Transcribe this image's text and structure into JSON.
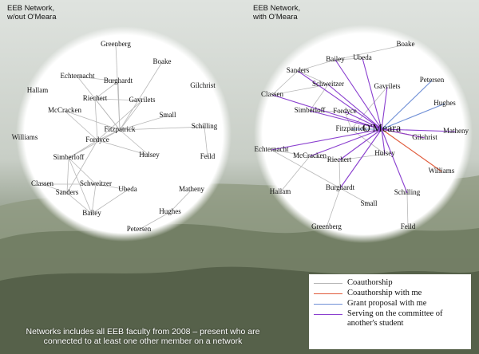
{
  "titles": {
    "left": [
      "EEB Network,",
      "w/out O'Meara"
    ],
    "right": [
      "EEB Network,",
      "with O'Meara"
    ]
  },
  "colors": {
    "coauthorship": "#b8b8b8",
    "coauthorship_with_me": "#e05a3a",
    "grant_proposal": "#6f8fd6",
    "committee": "#8a3fcf",
    "circle_fill": "#ffffff",
    "background": "#7f8b78"
  },
  "left_network": {
    "nodes": [
      {
        "id": "greenberg",
        "label": "Greenberg"
      },
      {
        "id": "boake",
        "label": "Boake"
      },
      {
        "id": "echternacht",
        "label": "Echternacht"
      },
      {
        "id": "burghardt",
        "label": "Burghardt"
      },
      {
        "id": "gilchrist",
        "label": "Gilchrist"
      },
      {
        "id": "hallam",
        "label": "Hallam"
      },
      {
        "id": "riechert",
        "label": "Riechert"
      },
      {
        "id": "gavrilets",
        "label": "Gavrilets"
      },
      {
        "id": "mccracken",
        "label": "McCracken"
      },
      {
        "id": "small",
        "label": "Small"
      },
      {
        "id": "schilling",
        "label": "Schilling"
      },
      {
        "id": "fitzpatrick",
        "label": "Fitzpatrick"
      },
      {
        "id": "williams",
        "label": "Williams"
      },
      {
        "id": "fordyce",
        "label": "Fordyce"
      },
      {
        "id": "feild",
        "label": "Feild"
      },
      {
        "id": "hulsey",
        "label": "Hulsey"
      },
      {
        "id": "simberloff",
        "label": "Simberloff"
      },
      {
        "id": "classen",
        "label": "Classen"
      },
      {
        "id": "schweitzer",
        "label": "Schweitzer"
      },
      {
        "id": "ubeda",
        "label": "Ubeda"
      },
      {
        "id": "matheny",
        "label": "Matheny"
      },
      {
        "id": "sanders",
        "label": "Sanders"
      },
      {
        "id": "hughes",
        "label": "Hughes"
      },
      {
        "id": "bailey",
        "label": "Bailey"
      },
      {
        "id": "petersen",
        "label": "Petersen"
      }
    ],
    "edges": [
      [
        "greenberg",
        "fitzpatrick"
      ],
      [
        "boake",
        "fitzpatrick"
      ],
      [
        "burghardt",
        "fitzpatrick"
      ],
      [
        "burghardt",
        "riechert"
      ],
      [
        "echternacht",
        "fitzpatrick"
      ],
      [
        "echternacht",
        "burghardt"
      ],
      [
        "riechert",
        "fordyce"
      ],
      [
        "riechert",
        "fitzpatrick"
      ],
      [
        "mccracken",
        "fitzpatrick"
      ],
      [
        "mccracken",
        "fordyce"
      ],
      [
        "gavrilets",
        "fitzpatrick"
      ],
      [
        "gavrilets",
        "fordyce"
      ],
      [
        "fitzpatrick",
        "small"
      ],
      [
        "fitzpatrick",
        "schilling"
      ],
      [
        "fitzpatrick",
        "hulsey"
      ],
      [
        "fitzpatrick",
        "fordyce"
      ],
      [
        "fitzpatrick",
        "simberloff"
      ],
      [
        "fordyce",
        "simberloff"
      ],
      [
        "fordyce",
        "hulsey"
      ],
      [
        "schilling",
        "feild"
      ],
      [
        "simberloff",
        "sanders"
      ],
      [
        "simberloff",
        "schweitzer"
      ],
      [
        "simberloff",
        "bailey"
      ],
      [
        "classen",
        "sanders"
      ],
      [
        "classen",
        "schweitzer"
      ],
      [
        "schweitzer",
        "ubeda"
      ],
      [
        "schweitzer",
        "bailey"
      ],
      [
        "sanders",
        "bailey"
      ],
      [
        "ubeda",
        "bailey"
      ],
      [
        "matheny",
        "hughes"
      ],
      [
        "hughes",
        "petersen"
      ],
      [
        "riechert",
        "gavrilets"
      ],
      [
        "fordyce",
        "sanders"
      ]
    ]
  },
  "right_network": {
    "center": {
      "id": "omeara",
      "label": "O'Meara"
    },
    "nodes": [
      {
        "id": "boake",
        "label": "Boake"
      },
      {
        "id": "bailey",
        "label": "Bailey"
      },
      {
        "id": "ubeda",
        "label": "Ubeda"
      },
      {
        "id": "sanders",
        "label": "Sanders"
      },
      {
        "id": "schweitzer",
        "label": "Schweitzer"
      },
      {
        "id": "gavrilets",
        "label": "Gavrilets"
      },
      {
        "id": "petersen",
        "label": "Petersen"
      },
      {
        "id": "classen",
        "label": "Classen"
      },
      {
        "id": "hughes",
        "label": "Hughes"
      },
      {
        "id": "simberloff",
        "label": "Simberloff"
      },
      {
        "id": "fordyce",
        "label": "Fordyce"
      },
      {
        "id": "fitzpatrick",
        "label": "Fitzpatrick"
      },
      {
        "id": "matheny",
        "label": "Matheny"
      },
      {
        "id": "gilchrist",
        "label": "Gilchrist"
      },
      {
        "id": "echternacht",
        "label": "Echternacht"
      },
      {
        "id": "mccracken",
        "label": "McCracken"
      },
      {
        "id": "riechert",
        "label": "Riechert"
      },
      {
        "id": "hulsey",
        "label": "Hulsey"
      },
      {
        "id": "williams",
        "label": "Williams"
      },
      {
        "id": "burghardt",
        "label": "Burghardt"
      },
      {
        "id": "hallam",
        "label": "Hallam"
      },
      {
        "id": "schilling",
        "label": "Schilling"
      },
      {
        "id": "small",
        "label": "Small"
      },
      {
        "id": "greenberg",
        "label": "Greenberg"
      },
      {
        "id": "feild",
        "label": "Feild"
      }
    ],
    "edges": [
      {
        "from": "boake",
        "to": "bailey",
        "type": "coauthorship"
      },
      {
        "from": "bailey",
        "to": "ubeda",
        "type": "coauthorship"
      },
      {
        "from": "sanders",
        "to": "bailey",
        "type": "coauthorship"
      },
      {
        "from": "sanders",
        "to": "schweitzer",
        "type": "coauthorship"
      },
      {
        "from": "classen",
        "to": "sanders",
        "type": "coauthorship"
      },
      {
        "from": "classen",
        "to": "schweitzer",
        "type": "coauthorship"
      },
      {
        "from": "schweitzer",
        "to": "simberloff",
        "type": "coauthorship"
      },
      {
        "from": "simberloff",
        "to": "fordyce",
        "type": "coauthorship"
      },
      {
        "from": "fitzpatrick",
        "to": "hulsey",
        "type": "coauthorship"
      },
      {
        "from": "fitzpatrick",
        "to": "gavrilets",
        "type": "coauthorship"
      },
      {
        "from": "echternacht",
        "to": "mccracken",
        "type": "coauthorship"
      },
      {
        "from": "mccracken",
        "to": "riechert",
        "type": "coauthorship"
      },
      {
        "from": "riechert",
        "to": "hulsey",
        "type": "coauthorship"
      },
      {
        "from": "burghardt",
        "to": "small",
        "type": "coauthorship"
      },
      {
        "from": "burghardt",
        "to": "greenberg",
        "type": "coauthorship"
      },
      {
        "from": "burghardt",
        "to": "echternacht",
        "type": "coauthorship"
      },
      {
        "from": "burghardt",
        "to": "riechert",
        "type": "coauthorship"
      },
      {
        "from": "schilling",
        "to": "feild",
        "type": "coauthorship"
      },
      {
        "from": "hallam",
        "to": "mccracken",
        "type": "coauthorship"
      },
      {
        "from": "fordyce",
        "to": "fitzpatrick",
        "type": "coauthorship"
      },
      {
        "from": "omeara",
        "to": "williams",
        "type": "coauthorship_with_me"
      },
      {
        "from": "omeara",
        "to": "gilchrist",
        "type": "coauthorship_with_me"
      },
      {
        "from": "omeara",
        "to": "hughes",
        "type": "grant_proposal"
      },
      {
        "from": "omeara",
        "to": "petersen",
        "type": "grant_proposal"
      },
      {
        "from": "omeara",
        "to": "fitzpatrick",
        "type": "grant_proposal"
      },
      {
        "from": "omeara",
        "to": "bailey",
        "type": "committee"
      },
      {
        "from": "omeara",
        "to": "ubeda",
        "type": "committee"
      },
      {
        "from": "omeara",
        "to": "sanders",
        "type": "committee"
      },
      {
        "from": "omeara",
        "to": "schweitzer",
        "type": "committee"
      },
      {
        "from": "omeara",
        "to": "gavrilets",
        "type": "committee"
      },
      {
        "from": "omeara",
        "to": "simberloff",
        "type": "committee"
      },
      {
        "from": "omeara",
        "to": "fordyce",
        "type": "committee"
      },
      {
        "from": "omeara",
        "to": "matheny",
        "type": "committee"
      },
      {
        "from": "omeara",
        "to": "echternacht",
        "type": "committee"
      },
      {
        "from": "omeara",
        "to": "mccracken",
        "type": "committee"
      },
      {
        "from": "omeara",
        "to": "riechert",
        "type": "committee"
      },
      {
        "from": "omeara",
        "to": "hulsey",
        "type": "committee"
      },
      {
        "from": "omeara",
        "to": "burghardt",
        "type": "committee"
      },
      {
        "from": "omeara",
        "to": "schilling",
        "type": "committee"
      },
      {
        "from": "omeara",
        "to": "gilchrist",
        "type": "committee"
      },
      {
        "from": "omeara",
        "to": "classen",
        "type": "committee"
      }
    ]
  },
  "legend": [
    {
      "type": "coauthorship",
      "label": "Coauthorship"
    },
    {
      "type": "coauthorship_with_me",
      "label": "Coauthorship with me"
    },
    {
      "type": "grant_proposal",
      "label": "Grant proposal with me"
    },
    {
      "type": "committee",
      "label": "Serving on the committee of another's student"
    }
  ],
  "footnote": "Networks includes all EEB faculty from 2008 – present who are connected to at least one other member on a network"
}
